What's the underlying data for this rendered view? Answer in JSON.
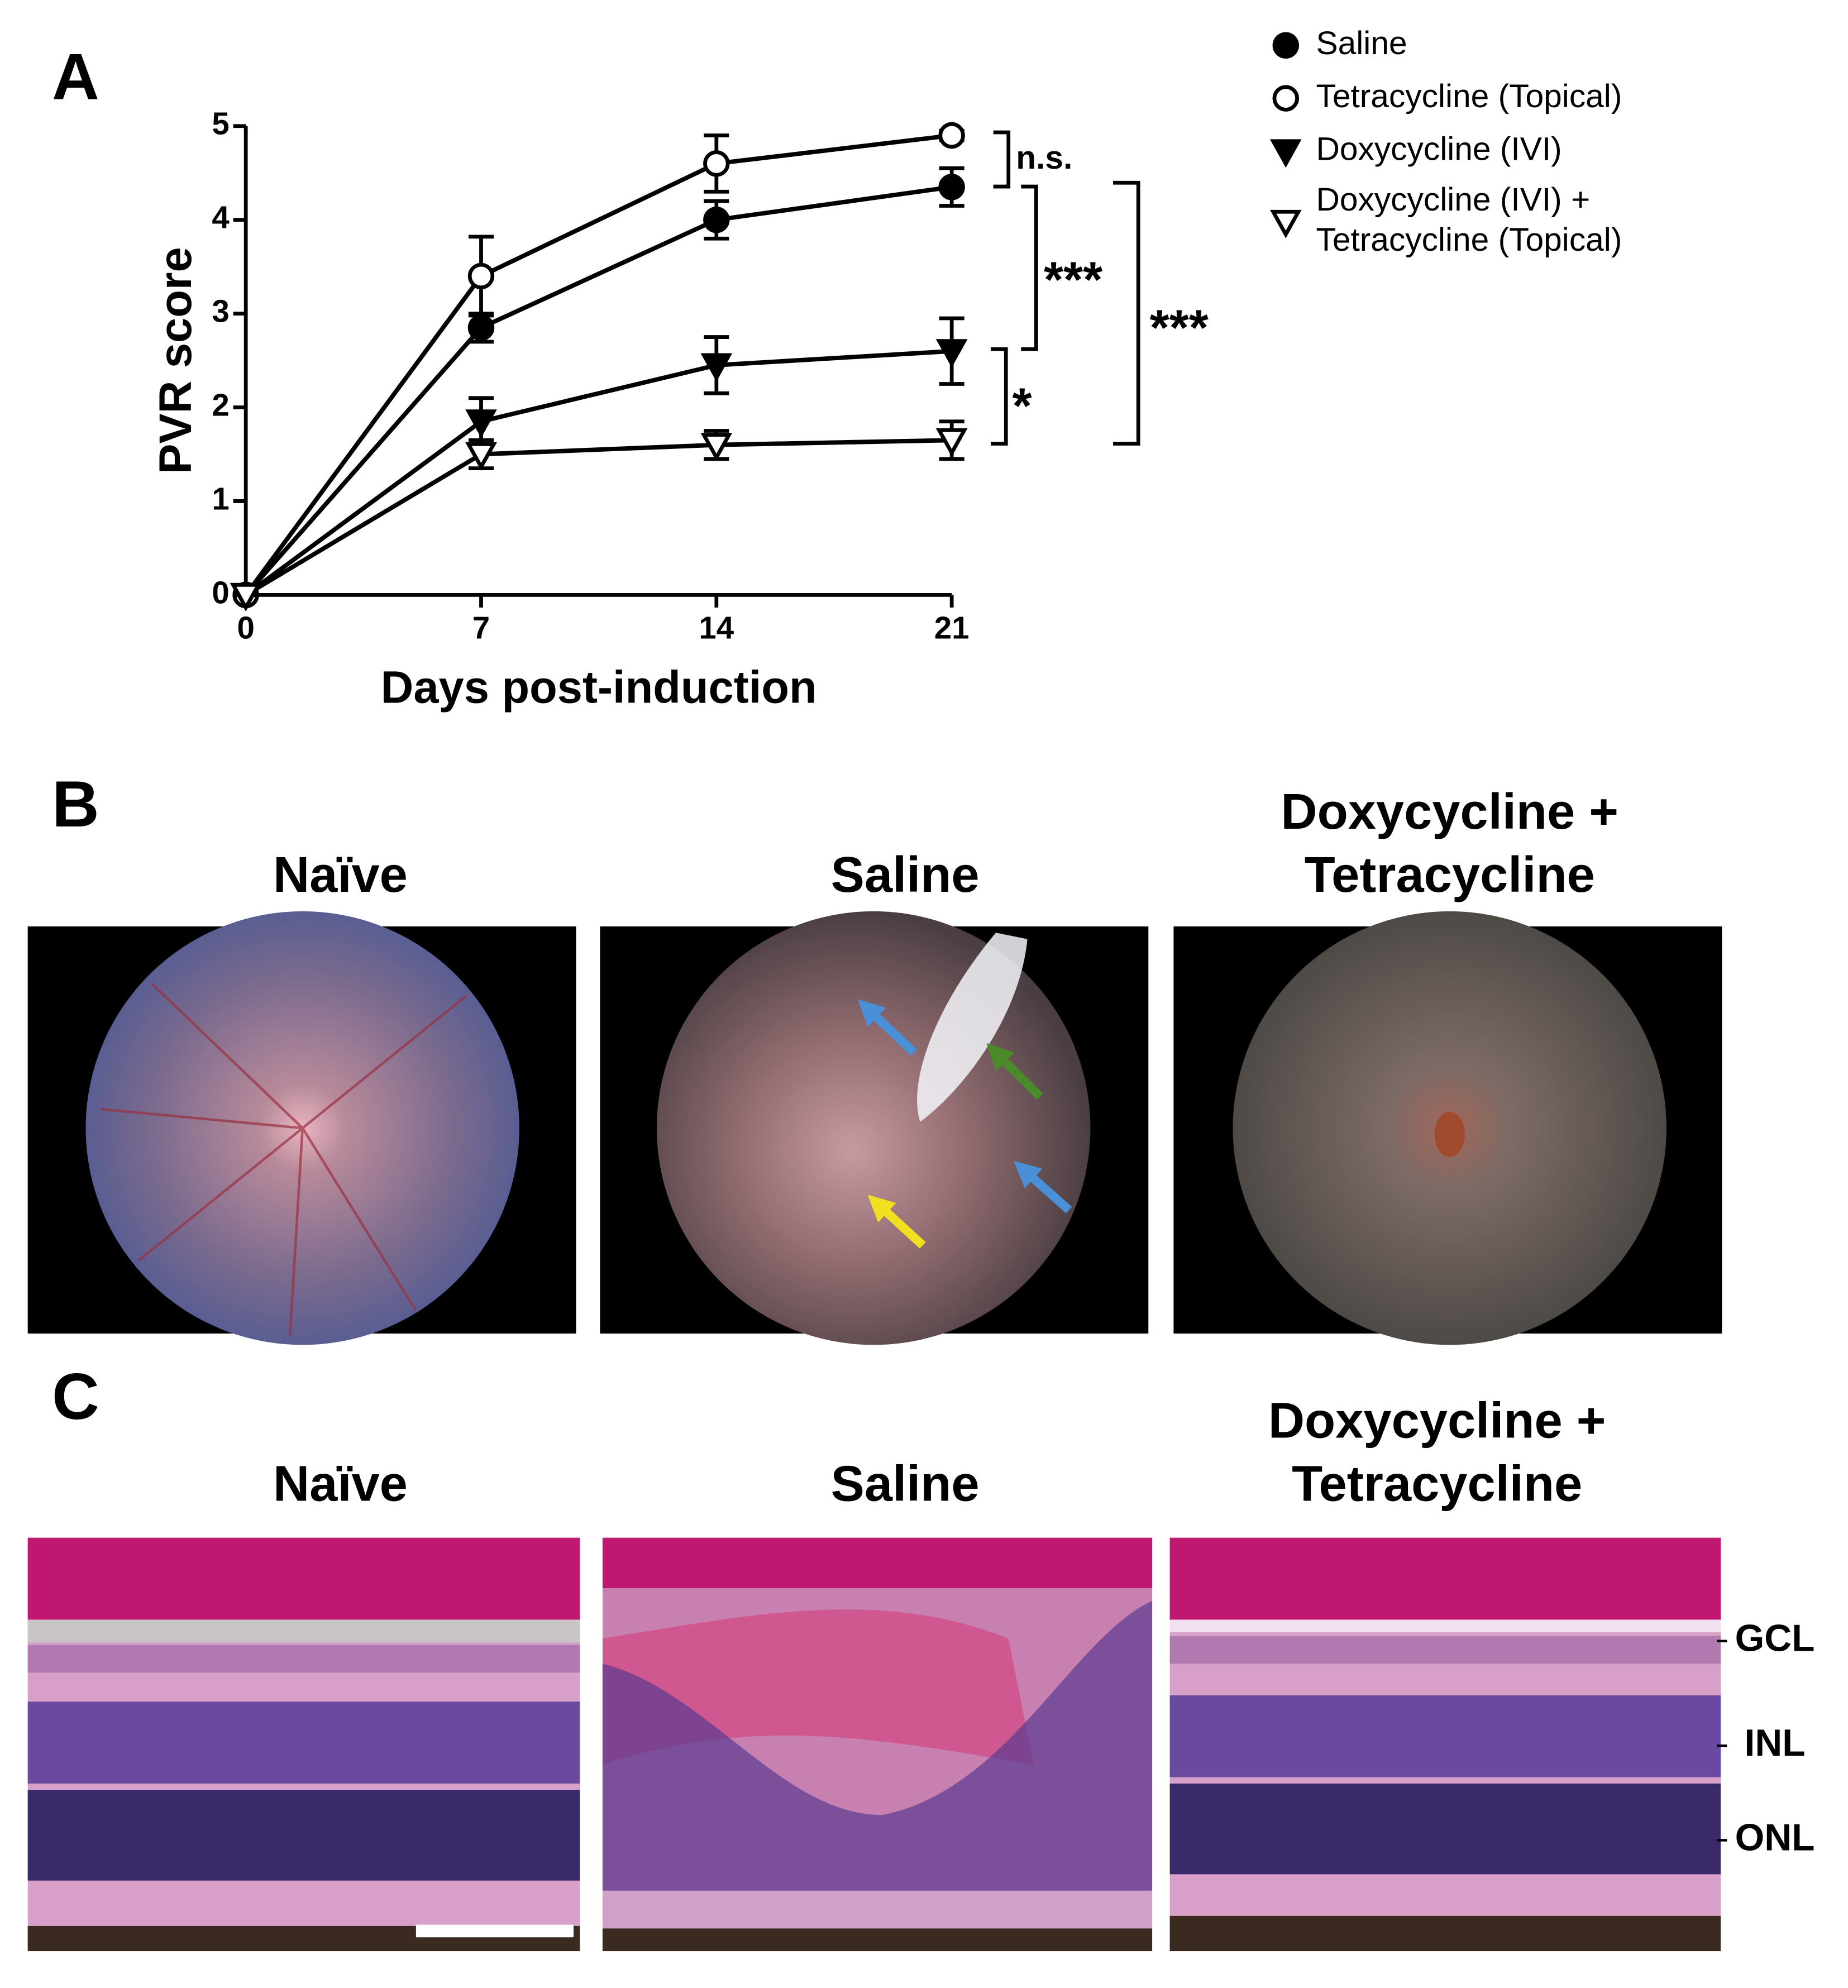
{
  "chart_data": {
    "type": "line",
    "panel_label": "A",
    "xlabel": "Days post-induction",
    "ylabel": "PVR score",
    "x": [
      0,
      7,
      14,
      21
    ],
    "xlim": [
      0,
      21
    ],
    "xticks": [
      0,
      7,
      14,
      21
    ],
    "ylim": [
      0,
      5
    ],
    "yticks": [
      0,
      1,
      2,
      3,
      4,
      5
    ],
    "legend": "top-right",
    "series": [
      {
        "name": "Saline",
        "color": "#000000",
        "marker": "circle-filled",
        "values": [
          0,
          2.85,
          4.0,
          4.35
        ],
        "errors": [
          0,
          0.15,
          0.2,
          0.2
        ]
      },
      {
        "name": "Tetracycline (Topical)",
        "color": "#000000",
        "marker": "circle-open",
        "values": [
          0,
          3.4,
          4.6,
          4.9
        ],
        "errors": [
          0,
          0.42,
          0.3,
          0.05
        ]
      },
      {
        "name": "Doxycycline (IVI)",
        "color": "#000000",
        "marker": "triangle-down-filled",
        "values": [
          0,
          1.85,
          2.45,
          2.6
        ],
        "errors": [
          0,
          0.25,
          0.3,
          0.35
        ]
      },
      {
        "name": "Doxycycline (IVI) + Tetracycline (Topical)",
        "color": "#000000",
        "marker": "triangle-down-open",
        "values": [
          0,
          1.5,
          1.6,
          1.65
        ],
        "errors": [
          0,
          0.15,
          0.15,
          0.2
        ]
      }
    ],
    "annotations": [
      "n.s.",
      "***",
      "*",
      "***"
    ]
  },
  "fundus": {
    "panel_label": "B",
    "titles": [
      [
        "Naïve"
      ],
      [
        "Saline"
      ],
      [
        "Doxycycline +",
        "Tetracycline"
      ]
    ]
  },
  "histology": {
    "panel_label": "C",
    "titles": [
      [
        "Naïve"
      ],
      [
        "Saline"
      ],
      [
        "Doxycycline +",
        "Tetracycline"
      ]
    ],
    "layers": [
      "GCL",
      "INL",
      "ONL"
    ]
  }
}
